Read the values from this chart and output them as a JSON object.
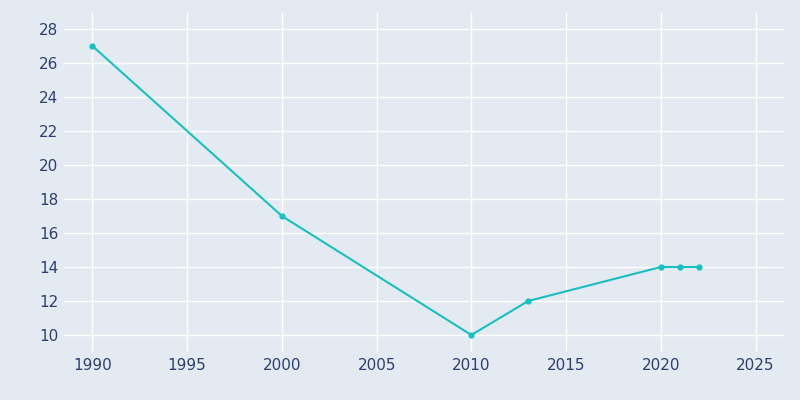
{
  "years": [
    1990,
    2000,
    2010,
    2013,
    2020,
    2021,
    2022
  ],
  "population": [
    27,
    17,
    10,
    12,
    14,
    14,
    14
  ],
  "line_color": "#1ABFBF",
  "marker": "o",
  "marker_size": 3.5,
  "bg_color": "#E3EAF2",
  "grid_color": "#ffffff",
  "xlim": [
    1988.5,
    2026.5
  ],
  "ylim": [
    9.0,
    29.0
  ],
  "xticks": [
    1990,
    1995,
    2000,
    2005,
    2010,
    2015,
    2020,
    2025
  ],
  "yticks": [
    10,
    12,
    14,
    16,
    18,
    20,
    22,
    24,
    26,
    28
  ],
  "tick_color": "#2E3F6F",
  "tick_fontsize": 11,
  "linewidth": 1.5
}
